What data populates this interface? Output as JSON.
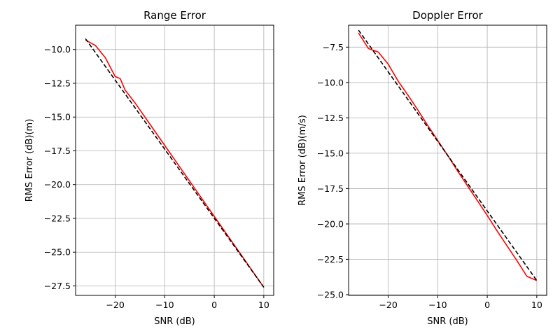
{
  "chart_data": [
    {
      "type": "line",
      "title": "Range Error",
      "xlabel": "SNR (dB)",
      "ylabel": "RMS Error (dB)(m)",
      "xlim": [
        -28,
        12
      ],
      "ylim": [
        -28.2,
        -8.2
      ],
      "grid": true,
      "xticks": [
        -20,
        -10,
        0,
        10
      ],
      "yticks": [
        -10.0,
        -12.5,
        -15.0,
        -17.5,
        -20.0,
        -22.5,
        -25.0,
        -27.5
      ],
      "xtick_labels": [
        "−20",
        "−10",
        "0",
        "10"
      ],
      "ytick_labels": [
        "−10.0",
        "−12.5",
        "−15.0",
        "−17.5",
        "−20.0",
        "−22.5",
        "−25.0",
        "−27.5"
      ],
      "series": [
        {
          "color": "#ff0000",
          "style": "solid",
          "x": [
            -26,
            -24,
            -22,
            -20,
            -19,
            -18,
            -16,
            -14,
            -12,
            -10,
            -8,
            -6,
            -4,
            -2,
            0,
            2,
            4,
            6,
            8,
            10
          ],
          "y": [
            -9.3,
            -9.7,
            -10.6,
            -12.0,
            -12.15,
            -13.0,
            -13.95,
            -15.0,
            -16.05,
            -17.1,
            -18.15,
            -19.2,
            -20.25,
            -21.3,
            -22.35,
            -23.4,
            -24.45,
            -25.5,
            -26.55,
            -27.6
          ]
        },
        {
          "color": "#000000",
          "style": "dashed",
          "x": [
            -26,
            10
          ],
          "y": [
            -9.2,
            -27.6
          ]
        }
      ]
    },
    {
      "type": "line",
      "title": "Doppler Error",
      "xlabel": "SNR (dB)",
      "ylabel": "RMS Error (dB)(m/s)",
      "xlim": [
        -28,
        12
      ],
      "ylim": [
        -25.05,
        -5.95
      ],
      "grid": true,
      "xticks": [
        -20,
        -10,
        0,
        10
      ],
      "yticks": [
        -7.5,
        -10.0,
        -12.5,
        -15.0,
        -17.5,
        -20.0,
        -22.5,
        -25.0
      ],
      "xtick_labels": [
        "−20",
        "−10",
        "0",
        "10"
      ],
      "ytick_labels": [
        "−7.5",
        "−10.0",
        "−12.5",
        "−15.0",
        "−17.5",
        "−20.0",
        "−22.5",
        "−25.0"
      ],
      "series": [
        {
          "color": "#ff0000",
          "style": "solid",
          "x": [
            -26,
            -24,
            -22,
            -20,
            -18,
            -16,
            -14,
            -12,
            -10,
            -8,
            -6,
            -4,
            -2,
            0,
            2,
            4,
            6,
            8,
            10
          ],
          "y": [
            -6.5,
            -7.6,
            -7.85,
            -8.7,
            -9.9,
            -10.9,
            -11.95,
            -13.05,
            -14.1,
            -15.15,
            -16.25,
            -17.3,
            -18.35,
            -19.4,
            -20.5,
            -21.55,
            -22.6,
            -23.7,
            -24.0
          ]
        },
        {
          "color": "#000000",
          "style": "dashed",
          "x": [
            -26,
            10
          ],
          "y": [
            -6.3,
            -24.0
          ]
        }
      ]
    }
  ]
}
